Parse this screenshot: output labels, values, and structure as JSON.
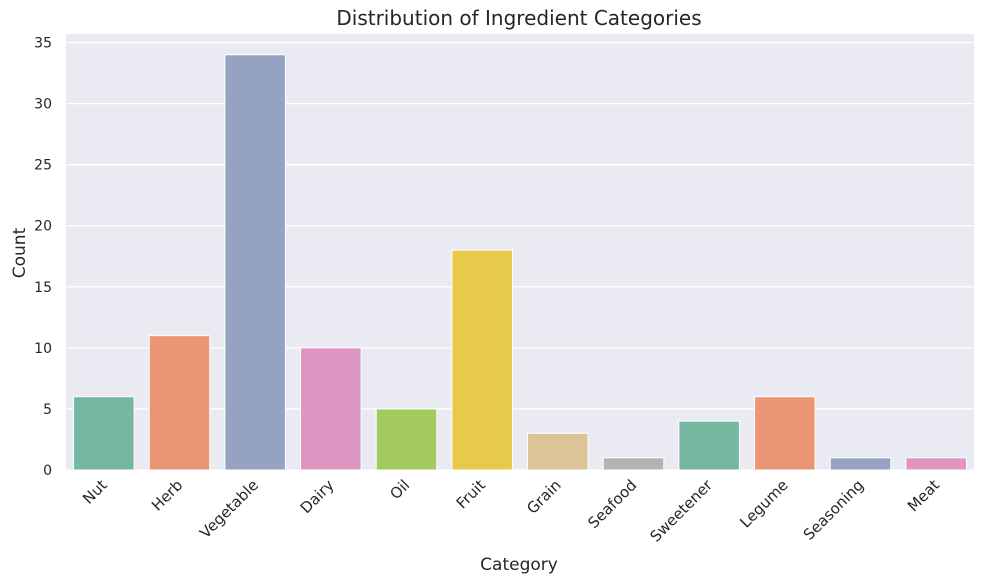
{
  "chart_data": {
    "type": "bar",
    "title": "Distribution of Ingredient Categories",
    "xlabel": "Category",
    "ylabel": "Count",
    "categories": [
      "Nut",
      "Herb",
      "Vegetable",
      "Dairy",
      "Oil",
      "Fruit",
      "Grain",
      "Seafood",
      "Sweetener",
      "Legume",
      "Seasoning",
      "Meat"
    ],
    "values": [
      6,
      11,
      34,
      10,
      5,
      18,
      3,
      1,
      4,
      6,
      1,
      1
    ],
    "colors": [
      "#76b7a1",
      "#ea9674",
      "#95a3c3",
      "#dd95c1",
      "#a2ca5e",
      "#e7ca4a",
      "#dbc498",
      "#b3b3b3",
      "#76b7a1",
      "#ea9674",
      "#95a3c3",
      "#dd95c1"
    ],
    "yticks": [
      0,
      5,
      10,
      15,
      20,
      25,
      30,
      35
    ],
    "ylim": [
      0,
      35.7
    ],
    "grid": true,
    "background": "#eaeaf2"
  }
}
